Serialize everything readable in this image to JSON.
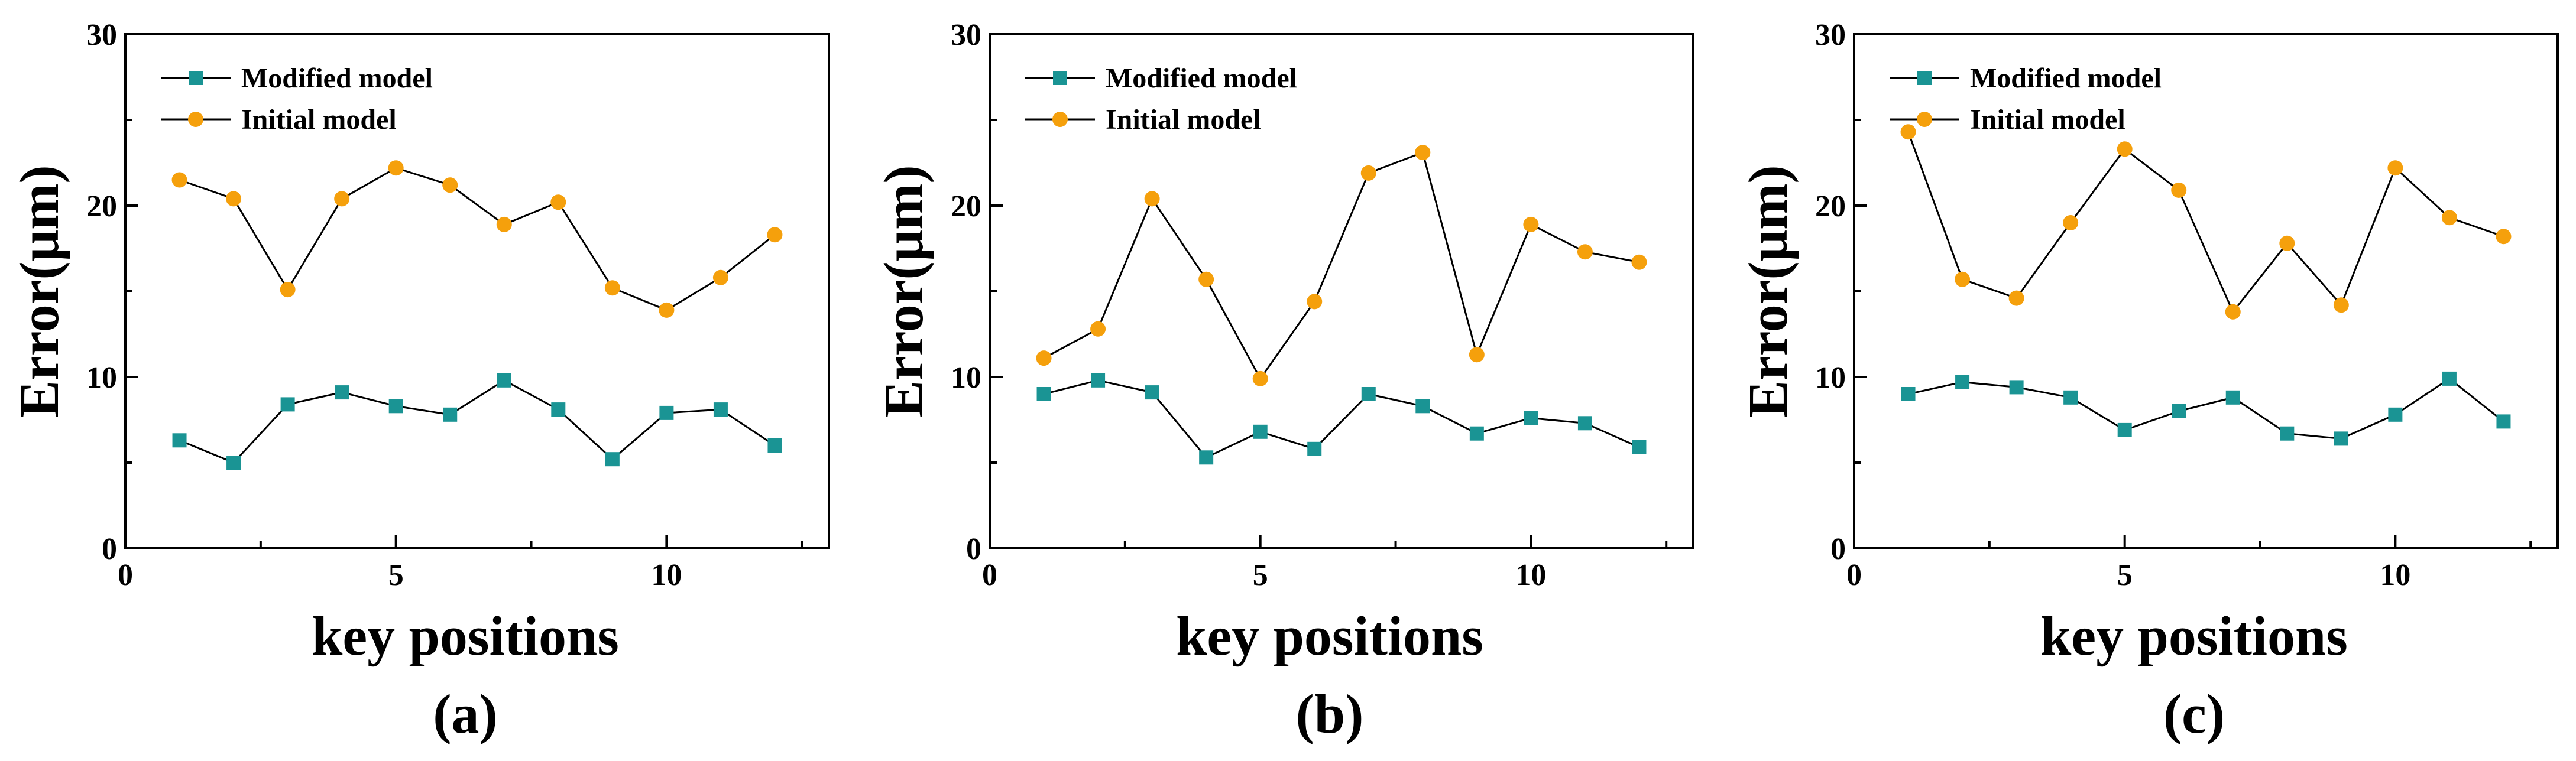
{
  "colors": {
    "modified": "#1a9494",
    "initial": "#f5a00c",
    "line": "#000000"
  },
  "legend": {
    "modified_label": "Modified model",
    "initial_label": "Initial model"
  },
  "chart_data": [
    {
      "type": "line",
      "panel_label": "(a)",
      "xlabel": "key positions",
      "ylabel": "Error(μm)",
      "xlim": [
        0,
        13
      ],
      "ylim": [
        0,
        30
      ],
      "xticks": [
        0,
        5,
        10
      ],
      "yticks": [
        0,
        10,
        20,
        30
      ],
      "x": [
        1,
        2,
        3,
        4,
        5,
        6,
        7,
        8,
        9,
        10,
        11,
        12
      ],
      "series": [
        {
          "name": "Modified model",
          "marker": "square",
          "values": [
            6.3,
            5.0,
            8.4,
            9.1,
            8.3,
            7.8,
            9.8,
            8.1,
            5.2,
            7.9,
            8.1,
            6.0
          ]
        },
        {
          "name": "Initial model",
          "marker": "circle",
          "values": [
            21.5,
            20.4,
            15.1,
            20.4,
            22.2,
            21.2,
            18.9,
            20.2,
            15.2,
            13.9,
            15.8,
            18.3
          ]
        }
      ]
    },
    {
      "type": "line",
      "panel_label": "(b)",
      "xlabel": "key positions",
      "ylabel": "Error(μm)",
      "xlim": [
        0,
        13
      ],
      "ylim": [
        0,
        30
      ],
      "xticks": [
        0,
        5,
        10
      ],
      "yticks": [
        0,
        10,
        20,
        30
      ],
      "x": [
        1,
        2,
        3,
        4,
        5,
        6,
        7,
        8,
        9,
        10,
        11,
        12
      ],
      "series": [
        {
          "name": "Modified model",
          "marker": "square",
          "values": [
            9.0,
            9.8,
            9.1,
            5.3,
            6.8,
            5.8,
            9.0,
            8.3,
            6.7,
            7.6,
            7.3,
            5.9
          ]
        },
        {
          "name": "Initial model",
          "marker": "circle",
          "values": [
            11.1,
            12.8,
            20.4,
            15.7,
            9.9,
            14.4,
            21.9,
            23.1,
            11.3,
            18.9,
            17.3,
            16.7
          ]
        }
      ]
    },
    {
      "type": "line",
      "panel_label": "(c)",
      "xlabel": "key positions",
      "ylabel": "Error(μm)",
      "xlim": [
        0,
        13
      ],
      "ylim": [
        0,
        30
      ],
      "xticks": [
        0,
        5,
        10
      ],
      "yticks": [
        0,
        10,
        20,
        30
      ],
      "x": [
        1,
        2,
        3,
        4,
        5,
        6,
        7,
        8,
        9,
        10,
        11,
        12
      ],
      "series": [
        {
          "name": "Modified model",
          "marker": "square",
          "values": [
            9.0,
            9.7,
            9.4,
            8.8,
            6.9,
            8.0,
            8.8,
            6.7,
            6.4,
            7.8,
            9.9,
            7.4
          ]
        },
        {
          "name": "Initial model",
          "marker": "circle",
          "values": [
            24.3,
            15.7,
            14.6,
            19.0,
            23.3,
            20.9,
            13.8,
            17.8,
            14.2,
            22.2,
            19.3,
            18.2
          ]
        }
      ]
    }
  ]
}
